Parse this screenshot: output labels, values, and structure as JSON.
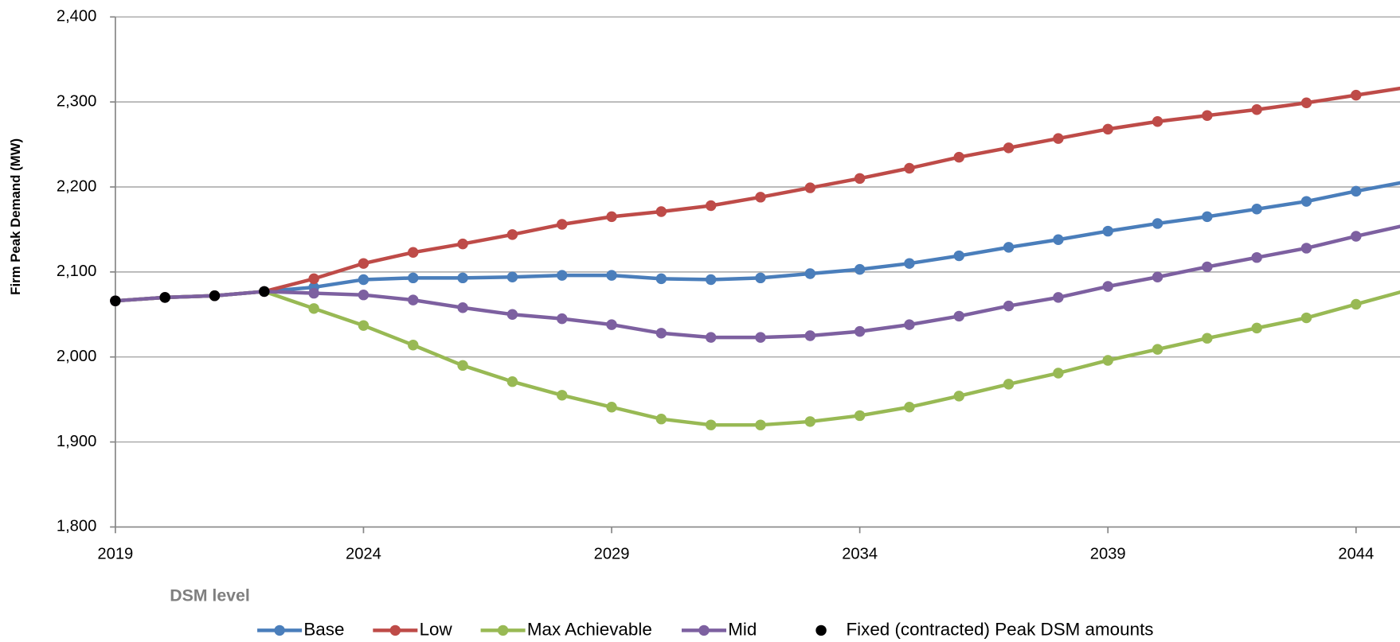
{
  "chart_data": {
    "type": "line",
    "y_label": "Firm Peak Demand (MW)",
    "legend_title": "DSM level",
    "legend": "bottom",
    "grid": true,
    "x": [
      2019,
      2020,
      2021,
      2022,
      2023,
      2024,
      2025,
      2026,
      2027,
      2028,
      2029,
      2030,
      2031,
      2032,
      2033,
      2034,
      2035,
      2036,
      2037,
      2038,
      2039,
      2040,
      2041,
      2042,
      2043,
      2044,
      2045
    ],
    "xlim": [
      2019,
      2045
    ],
    "xticks": [
      2019,
      2024,
      2029,
      2034,
      2039,
      2044
    ],
    "ylim": [
      1800,
      2400
    ],
    "yticks": [
      {
        "value": 1800,
        "label": "1,800"
      },
      {
        "value": 1900,
        "label": "1,900"
      },
      {
        "value": 2000,
        "label": "2,000"
      },
      {
        "value": 2100,
        "label": "2,100"
      },
      {
        "value": 2200,
        "label": "2,200"
      },
      {
        "value": 2300,
        "label": "2,300"
      },
      {
        "value": 2400,
        "label": "2,400"
      }
    ],
    "series": [
      {
        "name": "Base",
        "color": "#4a7ebb",
        "type": "line",
        "values": [
          2066,
          2070,
          2072,
          2077,
          2082,
          2091,
          2093,
          2093,
          2094,
          2096,
          2096,
          2092,
          2091,
          2093,
          2098,
          2103,
          2110,
          2119,
          2129,
          2138,
          2148,
          2157,
          2165,
          2174,
          2183,
          2195,
          2206
        ]
      },
      {
        "name": "Low",
        "color": "#be4b48",
        "type": "line",
        "values": [
          2066,
          2070,
          2072,
          2077,
          2092,
          2110,
          2123,
          2133,
          2144,
          2156,
          2165,
          2171,
          2178,
          2188,
          2199,
          2210,
          2222,
          2235,
          2246,
          2257,
          2268,
          2277,
          2284,
          2291,
          2299,
          2308,
          2317
        ]
      },
      {
        "name": "Max Achievable",
        "color": "#98b954",
        "type": "line",
        "values": [
          2066,
          2070,
          2072,
          2077,
          2057,
          2037,
          2014,
          1990,
          1971,
          1955,
          1941,
          1927,
          1920,
          1920,
          1924,
          1931,
          1941,
          1954,
          1968,
          1981,
          1996,
          2009,
          2022,
          2034,
          2046,
          2062,
          2078
        ]
      },
      {
        "name": "Mid",
        "color": "#7d60a0",
        "type": "line",
        "values": [
          2066,
          2070,
          2072,
          2077,
          2075,
          2073,
          2067,
          2058,
          2050,
          2045,
          2038,
          2028,
          2023,
          2023,
          2025,
          2030,
          2038,
          2048,
          2060,
          2070,
          2083,
          2094,
          2106,
          2117,
          2128,
          2142,
          2155
        ]
      },
      {
        "name": "Fixed (contracted) Peak DSM amounts",
        "color": "#000000",
        "type": "scatter",
        "values": [
          2066,
          2070,
          2072,
          2077,
          null,
          null,
          null,
          null,
          null,
          null,
          null,
          null,
          null,
          null,
          null,
          null,
          null,
          null,
          null,
          null,
          null,
          null,
          null,
          null,
          null,
          null,
          null
        ]
      }
    ]
  }
}
